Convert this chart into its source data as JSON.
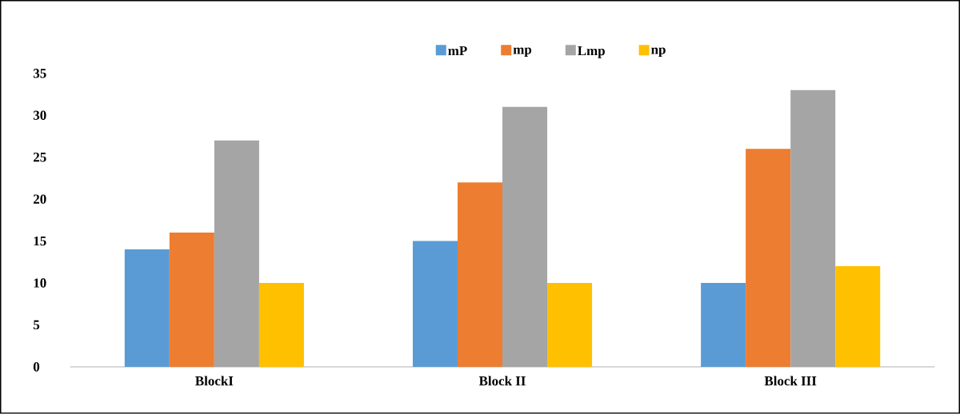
{
  "chart_data": {
    "type": "bar",
    "categories": [
      "BlockI",
      "Block II",
      "Block III"
    ],
    "series": [
      {
        "name": "mP",
        "color": "#5b9bd5",
        "values": [
          14,
          15,
          10
        ]
      },
      {
        "name": "mp",
        "color": "#ed7d31",
        "values": [
          16,
          22,
          26
        ]
      },
      {
        "name": "Lmp",
        "color": "#a5a5a5",
        "values": [
          27,
          31,
          33
        ]
      },
      {
        "name": "np",
        "color": "#ffc000",
        "values": [
          10,
          10,
          12
        ]
      }
    ],
    "ylim": [
      0,
      35
    ],
    "yticks": [
      0,
      5,
      10,
      15,
      20,
      25,
      30,
      35
    ],
    "grid": false,
    "legend": "top"
  }
}
